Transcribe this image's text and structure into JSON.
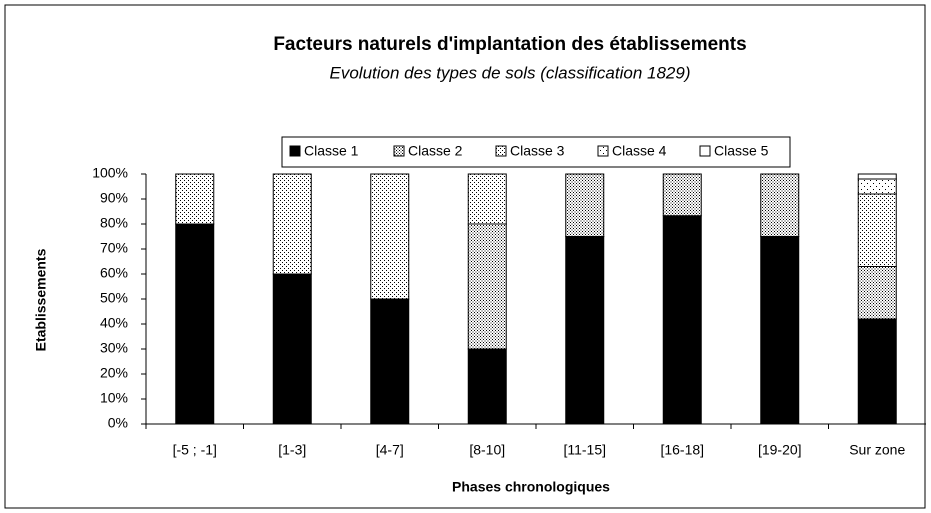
{
  "chart_data": {
    "type": "bar",
    "stacked": true,
    "title": "Facteurs naturels d'implantation des établissements",
    "subtitle": "Evolution des types de sols (classification 1829)",
    "x_label": "Phases chronologiques",
    "y_label": "Etablissements",
    "categories": [
      "[-5 ; -1]",
      "[1-3]",
      "[4-7]",
      "[8-10]",
      "[11-15]",
      "[16-18]",
      "[19-20]",
      "Sur zone"
    ],
    "series": [
      {
        "name": "Classe 1",
        "color": "#000000",
        "values": [
          80,
          60,
          50,
          30,
          75,
          83.3,
          75,
          42
        ]
      },
      {
        "name": "Classe 2",
        "color": "#c8c8c8",
        "values": [
          0,
          0,
          0,
          50,
          25,
          16.7,
          25,
          21
        ]
      },
      {
        "name": "Classe 3",
        "color": "#e6e6e6",
        "values": [
          20,
          40,
          50,
          20,
          0,
          0,
          0,
          29
        ]
      },
      {
        "name": "Classe 4",
        "color": "#f4f4f4",
        "values": [
          0,
          0,
          0,
          0,
          0,
          0,
          0,
          6
        ]
      },
      {
        "name": "Classe 5",
        "color": "#ffffff",
        "values": [
          0,
          0,
          0,
          0,
          0,
          0,
          0,
          2
        ]
      }
    ],
    "ylim": [
      0,
      100
    ],
    "yticks": [
      {
        "value": 0,
        "label": "0%"
      },
      {
        "value": 10,
        "label": "10%"
      },
      {
        "value": 20,
        "label": "20%"
      },
      {
        "value": 30,
        "label": "30%"
      },
      {
        "value": 40,
        "label": "40%"
      },
      {
        "value": 50,
        "label": "50%"
      },
      {
        "value": 60,
        "label": "60%"
      },
      {
        "value": 70,
        "label": "70%"
      },
      {
        "value": 80,
        "label": "80%"
      },
      {
        "value": 90,
        "label": "90%"
      },
      {
        "value": 100,
        "label": "100%"
      }
    ],
    "legend": "top",
    "grid": false
  }
}
